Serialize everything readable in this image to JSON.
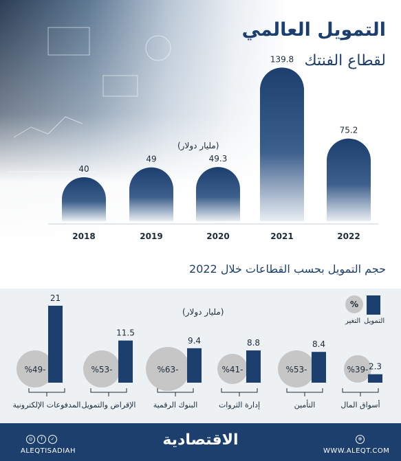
{
  "header": {
    "title": "التمويل العالمي",
    "subtitle": "لقطاع الفنتك"
  },
  "colors": {
    "navy": "#1d3f6e",
    "grey": "#c6c6c6"
  },
  "top_chart": {
    "unit": "(مليار دولار)"
  },
  "bottom_section": {
    "title": "حجم التمويل بحسب القطاعات خلال 2022",
    "unit": "(مليار دولار)",
    "legend": {
      "funding_label": "التمويل",
      "change_symbol": "%",
      "change_label": "التغير"
    }
  },
  "footer": {
    "social_handle": "ALEQTISADIAH",
    "brand": "الاقتصادية",
    "website": "WWW.ALEQT.COM",
    "social_icons": [
      "instagram-icon",
      "facebook-icon",
      "twitter-icon"
    ]
  },
  "chart_data": [
    {
      "type": "bar",
      "categories": [
        "2018",
        "2019",
        "2020",
        "2021",
        "2022"
      ],
      "values": [
        40,
        49,
        49.3,
        139.8,
        75.2
      ],
      "ylim": [
        0,
        140
      ]
    },
    {
      "type": "bar",
      "categories": [
        "المدفوعات الإلكترونية",
        "الإقراض والتمويل",
        "البنوك الرقمية",
        "إدارة الثروات",
        "التأمين",
        "أسواق المال"
      ],
      "series": [
        {
          "name": "التمويل",
          "values": [
            21,
            11.5,
            9.4,
            8.8,
            8.4,
            2.3
          ]
        },
        {
          "name": "التغير",
          "values": [
            "%49-",
            "%53-",
            "%63-",
            "%41-",
            "%53-",
            "%39-"
          ]
        }
      ],
      "ylim": [
        0,
        21
      ]
    }
  ]
}
